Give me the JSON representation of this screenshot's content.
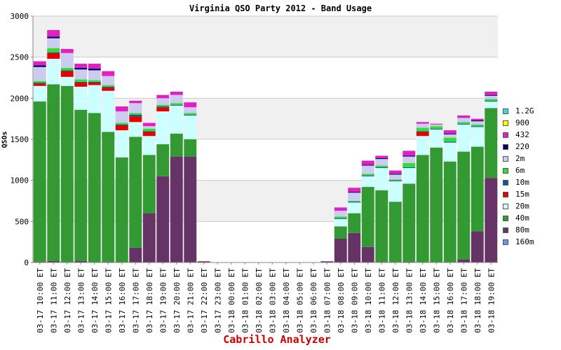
{
  "chart_data": {
    "type": "bar",
    "stacked": true,
    "title": "Virginia QSO Party 2012 - Band Usage",
    "ylabel": "QSOs",
    "footer": "Cabrillo Analyzer",
    "ylim": [
      0,
      3000
    ],
    "yticks": [
      0,
      500,
      1000,
      1500,
      2000,
      2500,
      3000
    ],
    "grid": true,
    "legend_position": "right",
    "categories": [
      "03-17 10:00 ET",
      "03-17 11:00 ET",
      "03-17 12:00 ET",
      "03-17 13:00 ET",
      "03-17 14:00 ET",
      "03-17 15:00 ET",
      "03-17 16:00 ET",
      "03-17 17:00 ET",
      "03-17 18:00 ET",
      "03-17 19:00 ET",
      "03-17 20:00 ET",
      "03-17 21:00 ET",
      "03-17 22:00 ET",
      "03-17 23:00 ET",
      "03-18 00:00 ET",
      "03-18 01:00 ET",
      "03-18 02:00 ET",
      "03-18 03:00 ET",
      "03-18 04:00 ET",
      "03-18 05:00 ET",
      "03-18 06:00 ET",
      "03-18 07:00 ET",
      "03-18 08:00 ET",
      "03-18 09:00 ET",
      "03-18 10:00 ET",
      "03-18 11:00 ET",
      "03-18 12:00 ET",
      "03-18 13:00 ET",
      "03-18 14:00 ET",
      "03-18 15:00 ET",
      "03-18 16:00 ET",
      "03-18 17:00 ET",
      "03-18 18:00 ET",
      "03-18 19:00 ET"
    ],
    "series": [
      {
        "name": "160m",
        "color": "#5f9be6",
        "values": [
          0,
          0,
          0,
          0,
          0,
          0,
          0,
          0,
          0,
          0,
          0,
          0,
          0,
          0,
          0,
          0,
          0,
          0,
          0,
          0,
          0,
          0,
          0,
          0,
          0,
          0,
          0,
          0,
          0,
          0,
          0,
          0,
          0,
          0
        ]
      },
      {
        "name": "80m",
        "color": "#663366",
        "values": [
          10,
          20,
          0,
          20,
          0,
          10,
          0,
          180,
          600,
          1050,
          1290,
          1290,
          15,
          0,
          0,
          0,
          0,
          0,
          0,
          0,
          0,
          15,
          290,
          360,
          190,
          0,
          0,
          10,
          0,
          0,
          0,
          40,
          380,
          1030
        ]
      },
      {
        "name": "40m",
        "color": "#339933",
        "values": [
          1950,
          2150,
          2150,
          1840,
          1820,
          1580,
          1280,
          1350,
          710,
          390,
          280,
          210,
          0,
          0,
          0,
          0,
          0,
          0,
          0,
          0,
          0,
          0,
          150,
          240,
          730,
          880,
          740,
          950,
          1310,
          1400,
          1230,
          1310,
          1030,
          850
        ]
      },
      {
        "name": "20m",
        "color": "#ccffff",
        "values": [
          190,
          310,
          110,
          280,
          340,
          500,
          330,
          180,
          230,
          400,
          340,
          290,
          0,
          0,
          0,
          0,
          0,
          0,
          0,
          0,
          0,
          0,
          90,
          130,
          130,
          270,
          250,
          190,
          230,
          220,
          230,
          330,
          240,
          80
        ]
      },
      {
        "name": "15m",
        "color": "#e50000",
        "values": [
          30,
          70,
          70,
          50,
          30,
          40,
          60,
          70,
          50,
          50,
          0,
          0,
          0,
          0,
          0,
          0,
          0,
          0,
          0,
          0,
          0,
          0,
          0,
          0,
          0,
          0,
          0,
          0,
          50,
          0,
          0,
          0,
          0,
          0
        ]
      },
      {
        "name": "10m",
        "color": "#0a5a99",
        "values": [
          10,
          10,
          10,
          10,
          10,
          10,
          10,
          20,
          10,
          10,
          10,
          10,
          0,
          0,
          0,
          0,
          0,
          0,
          0,
          0,
          0,
          0,
          10,
          10,
          10,
          10,
          10,
          10,
          10,
          10,
          10,
          10,
          10,
          10
        ]
      },
      {
        "name": "6m",
        "color": "#33dd33",
        "values": [
          20,
          50,
          30,
          30,
          20,
          20,
          20,
          20,
          30,
          20,
          20,
          20,
          0,
          0,
          0,
          0,
          0,
          0,
          0,
          0,
          0,
          0,
          20,
          10,
          20,
          20,
          10,
          50,
          40,
          30,
          50,
          20,
          20,
          20
        ]
      },
      {
        "name": "2m",
        "color": "#ccccf0",
        "values": [
          170,
          120,
          180,
          120,
          120,
          110,
          140,
          120,
          30,
          80,
          100,
          70,
          0,
          0,
          0,
          0,
          0,
          0,
          0,
          0,
          0,
          0,
          70,
          100,
          100,
          80,
          60,
          80,
          50,
          20,
          40,
          50,
          40,
          40
        ]
      },
      {
        "name": "220",
        "color": "#000066",
        "values": [
          20,
          20,
          0,
          20,
          20,
          0,
          0,
          0,
          0,
          0,
          0,
          0,
          0,
          0,
          0,
          0,
          0,
          0,
          0,
          0,
          0,
          0,
          0,
          10,
          10,
          10,
          10,
          10,
          0,
          0,
          10,
          0,
          10,
          10
        ]
      },
      {
        "name": "432",
        "color": "#e020c0",
        "values": [
          50,
          80,
          50,
          50,
          60,
          60,
          60,
          30,
          40,
          40,
          40,
          60,
          0,
          0,
          0,
          0,
          0,
          0,
          0,
          0,
          0,
          0,
          40,
          50,
          50,
          30,
          40,
          60,
          20,
          10,
          40,
          30,
          20,
          40
        ]
      },
      {
        "name": "900",
        "color": "#ffff00",
        "values": [
          0,
          0,
          0,
          0,
          0,
          0,
          0,
          0,
          0,
          0,
          0,
          0,
          0,
          0,
          0,
          0,
          0,
          0,
          0,
          0,
          0,
          0,
          0,
          0,
          0,
          0,
          0,
          0,
          0,
          0,
          0,
          0,
          0,
          0
        ]
      },
      {
        "name": "1.2G",
        "color": "#33dddd",
        "values": [
          0,
          0,
          0,
          0,
          0,
          0,
          0,
          0,
          0,
          0,
          0,
          0,
          0,
          0,
          0,
          0,
          0,
          0,
          0,
          0,
          0,
          0,
          0,
          0,
          0,
          0,
          0,
          0,
          0,
          0,
          0,
          0,
          0,
          0
        ]
      }
    ]
  }
}
